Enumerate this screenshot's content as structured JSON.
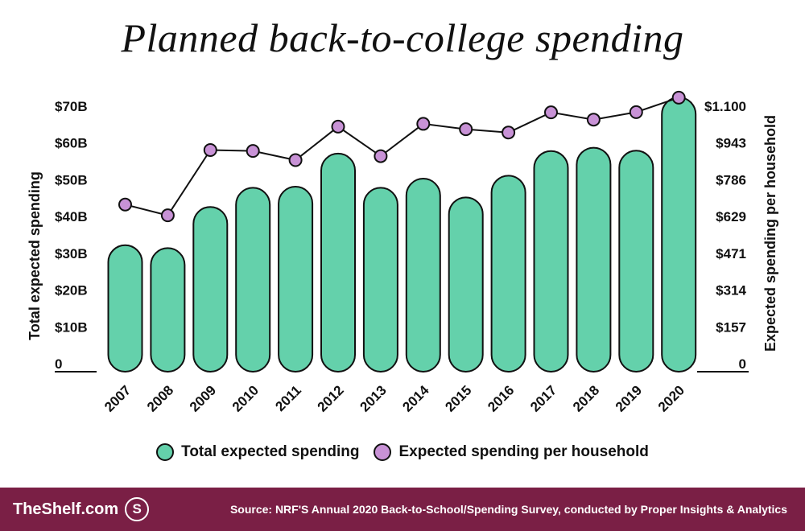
{
  "title": "Planned back-to-college spending",
  "chart_data": {
    "type": "bar",
    "categories": [
      "2007",
      "2008",
      "2009",
      "2010",
      "2011",
      "2012",
      "2013",
      "2014",
      "2015",
      "2016",
      "2017",
      "2018",
      "2019",
      "2020"
    ],
    "series": [
      {
        "name": "Total expected spending",
        "type": "bar",
        "axis": "left",
        "values": [
          34.4,
          33.6,
          44.8,
          50.0,
          50.3,
          59.3,
          50.0,
          52.5,
          47.4,
          53.3,
          60.0,
          60.9,
          60.1,
          74.6
        ],
        "color": "#64d1ab"
      },
      {
        "name": "Expected spending per household",
        "type": "line",
        "axis": "right",
        "values": [
          714,
          668,
          947,
          943,
          904,
          1047,
          921,
          1059,
          1036,
          1022,
          1108,
          1077,
          1109,
          1171
        ],
        "color": "#c892d6"
      }
    ],
    "ylabel": "Total expected spending",
    "ylabel_right": "Expected spending per household",
    "ylim": [
      0,
      70
    ],
    "ylim_right": [
      0,
      1100
    ],
    "left_ticks": [
      {
        "value": 0,
        "label": "0"
      },
      {
        "value": 10,
        "label": "$10B"
      },
      {
        "value": 20,
        "label": "$20B"
      },
      {
        "value": 30,
        "label": "$30B"
      },
      {
        "value": 40,
        "label": "$40B"
      },
      {
        "value": 50,
        "label": "$50B"
      },
      {
        "value": 60,
        "label": "$60B"
      },
      {
        "value": 70,
        "label": "$70B"
      }
    ],
    "right_ticks": [
      {
        "value": 0,
        "label": "0"
      },
      {
        "value": 157,
        "label": "$157"
      },
      {
        "value": 314,
        "label": "$314"
      },
      {
        "value": 471,
        "label": "$471"
      },
      {
        "value": 629,
        "label": "$629"
      },
      {
        "value": 786,
        "label": "$786"
      },
      {
        "value": 943,
        "label": "$943"
      },
      {
        "value": 1100,
        "label": "$1.100"
      }
    ],
    "legend": "bottom",
    "grid": false
  },
  "legend": {
    "bar_label": "Total expected spending",
    "line_label": "Expected spending per household"
  },
  "footer": {
    "brand": "TheShelf.com",
    "brand_icon": "S",
    "source": "Source: NRF'S Annual 2020 Back-to-School/Spending Survey, conducted by Proper Insights & Analytics"
  }
}
